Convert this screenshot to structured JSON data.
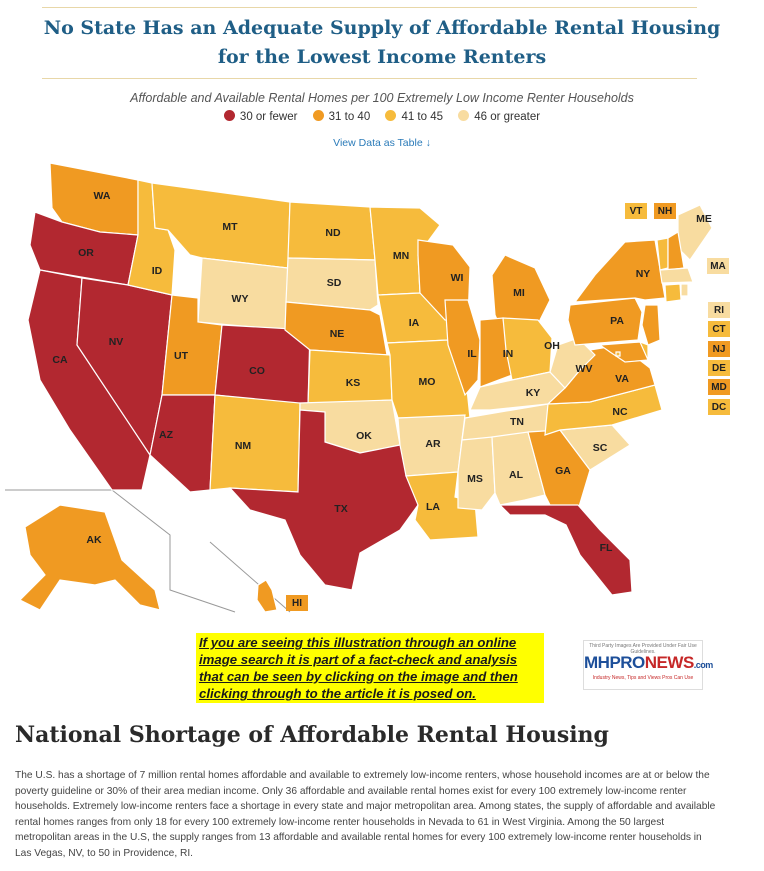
{
  "title": "No State Has an Adequate Supply of Affordable Rental Housing for the Lowest Income Renters",
  "subtitle": "Affordable and Available Rental Homes per 100 Extremely Low Income Renter Households",
  "legend": [
    {
      "label": "30 or fewer",
      "color": "#b22830"
    },
    {
      "label": "31 to 40",
      "color": "#f09a22"
    },
    {
      "label": "41 to 45",
      "color": "#f6bb3c"
    },
    {
      "label": "46 or greater",
      "color": "#f8dca0"
    }
  ],
  "view_table": "View Data as Table ↓",
  "states": {
    "WA": "31 to 40",
    "OR": "30 or fewer",
    "CA": "30 or fewer",
    "NV": "30 or fewer",
    "ID": "41 to 45",
    "MT": "41 to 45",
    "WY": "46 or greater",
    "UT": "31 to 40",
    "AZ": "30 or fewer",
    "CO": "30 or fewer",
    "NM": "41 to 45",
    "ND": "41 to 45",
    "SD": "46 or greater",
    "NE": "31 to 40",
    "KS": "41 to 45",
    "OK": "46 or greater",
    "TX": "30 or fewer",
    "MN": "41 to 45",
    "IA": "41 to 45",
    "MO": "41 to 45",
    "AR": "46 or greater",
    "LA": "41 to 45",
    "WI": "31 to 40",
    "IL": "31 to 40",
    "MI": "31 to 40",
    "IN": "31 to 40",
    "OH": "41 to 45",
    "KY": "46 or greater",
    "TN": "46 or greater",
    "MS": "46 or greater",
    "AL": "46 or greater",
    "GA": "31 to 40",
    "FL": "30 or fewer",
    "SC": "46 or greater",
    "NC": "41 to 45",
    "VA": "31 to 40",
    "WV": "46 or greater",
    "PA": "31 to 40",
    "NY": "31 to 40",
    "ME": "46 or greater",
    "VT": "41 to 45",
    "NH": "31 to 40",
    "MA": "46 or greater",
    "RI": "46 or greater",
    "CT": "41 to 45",
    "NJ": "31 to 40",
    "DE": "41 to 45",
    "MD": "31 to 40",
    "DC": "41 to 45",
    "AK": "31 to 40",
    "HI": "31 to 40"
  },
  "note": "If you are seeing this illustration through an online image search it is part of a fact-check and analysis that can be seen by clicking on the image and then clicking through to the article it is posed on.",
  "badge": {
    "top": "Third Party Images Are Provided Under Fair Use Guidelines.",
    "logo_a": "MHPRO",
    "logo_b": "NEWS",
    "logo_c": ".com",
    "tagline": "Industry News, Tips and Views Pros Can Use"
  },
  "section_heading": "National Shortage of Affordable Rental Housing",
  "body_text": "The U.S. has a shortage of 7 million rental homes affordable and available to extremely low-income renters, whose household incomes are at or below the poverty guideline or 30% of their area median income. Only 36 affordable and available rental homes exist for every 100 extremely low-income renter households. Extremely low-income renters face a shortage in every state and major metropolitan area. Among states, the supply of affordable and available rental homes ranges from only 18 for every 100 extremely low-income renter households in Nevada to 61 in West Virginia. Among the 50 largest metropolitan areas in the U.S, the supply ranges from 13 affordable and available rental homes for every 100 extremely low-income renter households in Las Vegas, NV, to 50 in Providence, RI."
}
